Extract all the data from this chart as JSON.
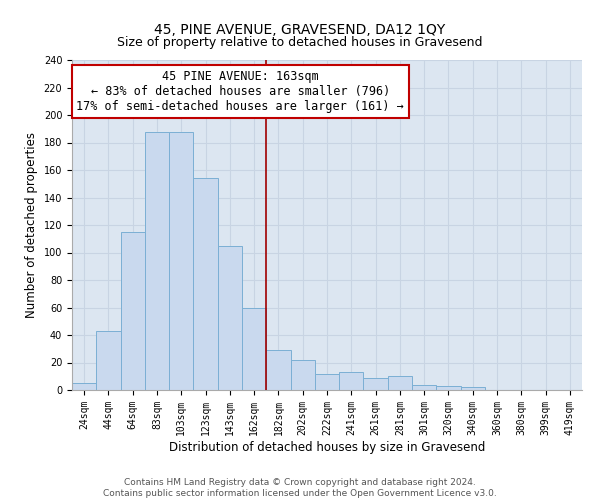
{
  "title": "45, PINE AVENUE, GRAVESEND, DA12 1QY",
  "subtitle": "Size of property relative to detached houses in Gravesend",
  "xlabel": "Distribution of detached houses by size in Gravesend",
  "ylabel": "Number of detached properties",
  "categories": [
    "24sqm",
    "44sqm",
    "64sqm",
    "83sqm",
    "103sqm",
    "123sqm",
    "143sqm",
    "162sqm",
    "182sqm",
    "202sqm",
    "222sqm",
    "241sqm",
    "261sqm",
    "281sqm",
    "301sqm",
    "320sqm",
    "340sqm",
    "360sqm",
    "380sqm",
    "399sqm",
    "419sqm"
  ],
  "values": [
    5,
    43,
    115,
    188,
    188,
    154,
    105,
    60,
    29,
    22,
    12,
    13,
    9,
    10,
    4,
    3,
    2,
    0,
    0,
    0,
    0
  ],
  "bar_color": "#c9d9ee",
  "bar_edge_color": "#7bafd4",
  "highlight_line_color": "#a00000",
  "annotation_title": "45 PINE AVENUE: 163sqm",
  "annotation_line1": "← 83% of detached houses are smaller (796)",
  "annotation_line2": "17% of semi-detached houses are larger (161) →",
  "annotation_box_color": "#ffffff",
  "annotation_box_edge_color": "#c00000",
  "ylim": [
    0,
    240
  ],
  "yticks": [
    0,
    20,
    40,
    60,
    80,
    100,
    120,
    140,
    160,
    180,
    200,
    220,
    240
  ],
  "footer_line1": "Contains HM Land Registry data © Crown copyright and database right 2024.",
  "footer_line2": "Contains public sector information licensed under the Open Government Licence v3.0.",
  "bg_color": "#dce6f1",
  "fig_bg_color": "#ffffff",
  "title_fontsize": 10,
  "subtitle_fontsize": 9,
  "axis_label_fontsize": 8.5,
  "tick_fontsize": 7,
  "annotation_fontsize": 8.5,
  "footer_fontsize": 6.5,
  "grid_color": "#c8d4e3"
}
